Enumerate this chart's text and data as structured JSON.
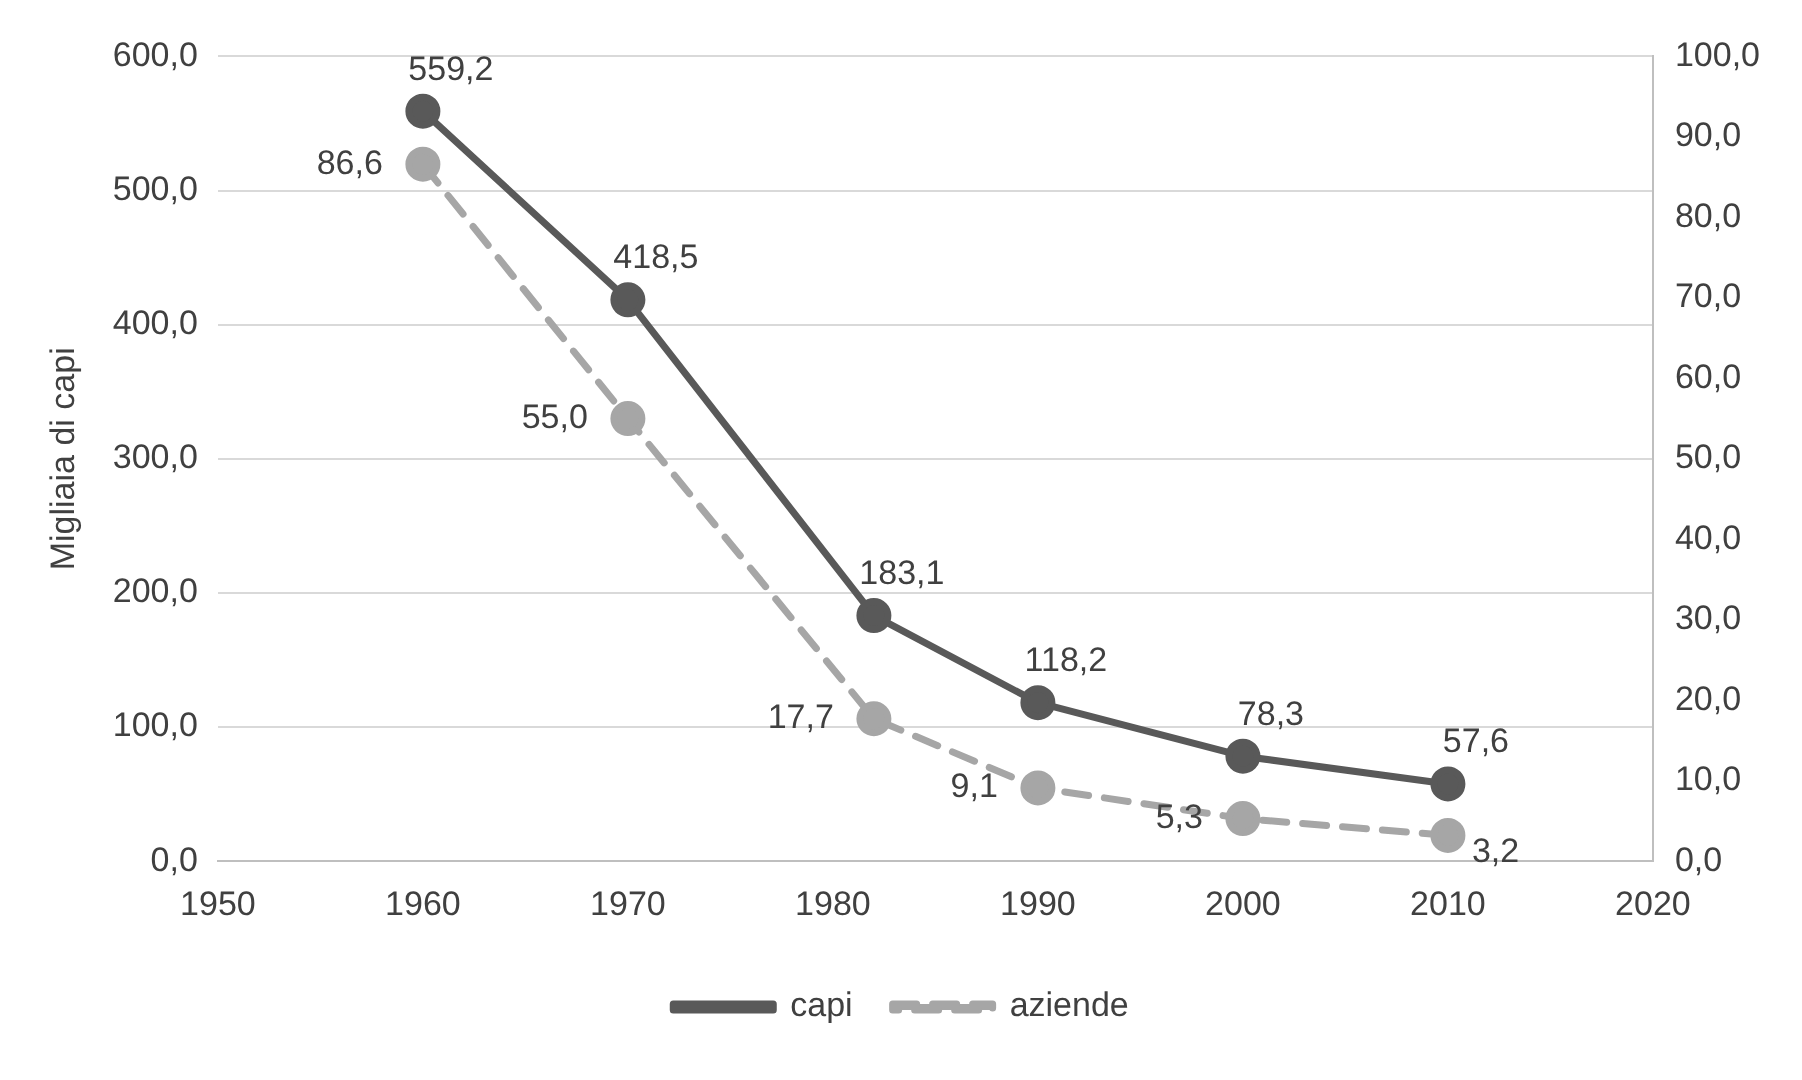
{
  "chart_data": {
    "type": "line",
    "ylabel": "Migliaia di capi",
    "xlim": [
      1950,
      2020
    ],
    "xticks": [
      1950,
      1960,
      1970,
      1980,
      1990,
      2000,
      2010,
      2020
    ],
    "ylim": [
      0,
      600
    ],
    "yticks": [
      {
        "value": 0,
        "label": "0,0"
      },
      {
        "value": 100,
        "label": "100,0"
      },
      {
        "value": 200,
        "label": "200,0"
      },
      {
        "value": 300,
        "label": "300,0"
      },
      {
        "value": 400,
        "label": "400,0"
      },
      {
        "value": 500,
        "label": "500,0"
      },
      {
        "value": 600,
        "label": "600,0"
      }
    ],
    "y2lim": [
      0,
      100
    ],
    "y2ticks": [
      {
        "value": 0,
        "label": "0,0"
      },
      {
        "value": 10,
        "label": "10,0"
      },
      {
        "value": 20,
        "label": "20,0"
      },
      {
        "value": 30,
        "label": "30,0"
      },
      {
        "value": 40,
        "label": "40,0"
      },
      {
        "value": 50,
        "label": "50,0"
      },
      {
        "value": 60,
        "label": "60,0"
      },
      {
        "value": 70,
        "label": "70,0"
      },
      {
        "value": 80,
        "label": "80,0"
      },
      {
        "value": 90,
        "label": "90,0"
      },
      {
        "value": 100,
        "label": "100,0"
      }
    ],
    "x": [
      1960,
      1970,
      1982,
      1990,
      2000,
      2010
    ],
    "series": [
      {
        "name": "capi",
        "color": "#595959",
        "line_style": "solid",
        "values": [
          559.2,
          418.5,
          183.1,
          118.2,
          78.3,
          57.6
        ],
        "value_labels": [
          "559,2",
          "418,5",
          "183,1",
          "118,2",
          "78,3",
          "57,6"
        ]
      },
      {
        "name": "aziende",
        "color": "#a6a6a6",
        "line_style": "dashed",
        "axis": "y2",
        "values": [
          86.6,
          55.0,
          17.7,
          9.1,
          5.3,
          3.2
        ],
        "value_labels": [
          "86,6",
          "55,0",
          "17,7",
          "9,1",
          "5,3",
          "3,2"
        ]
      }
    ],
    "marker": "circle",
    "grid": "y",
    "legend": "bottom"
  }
}
